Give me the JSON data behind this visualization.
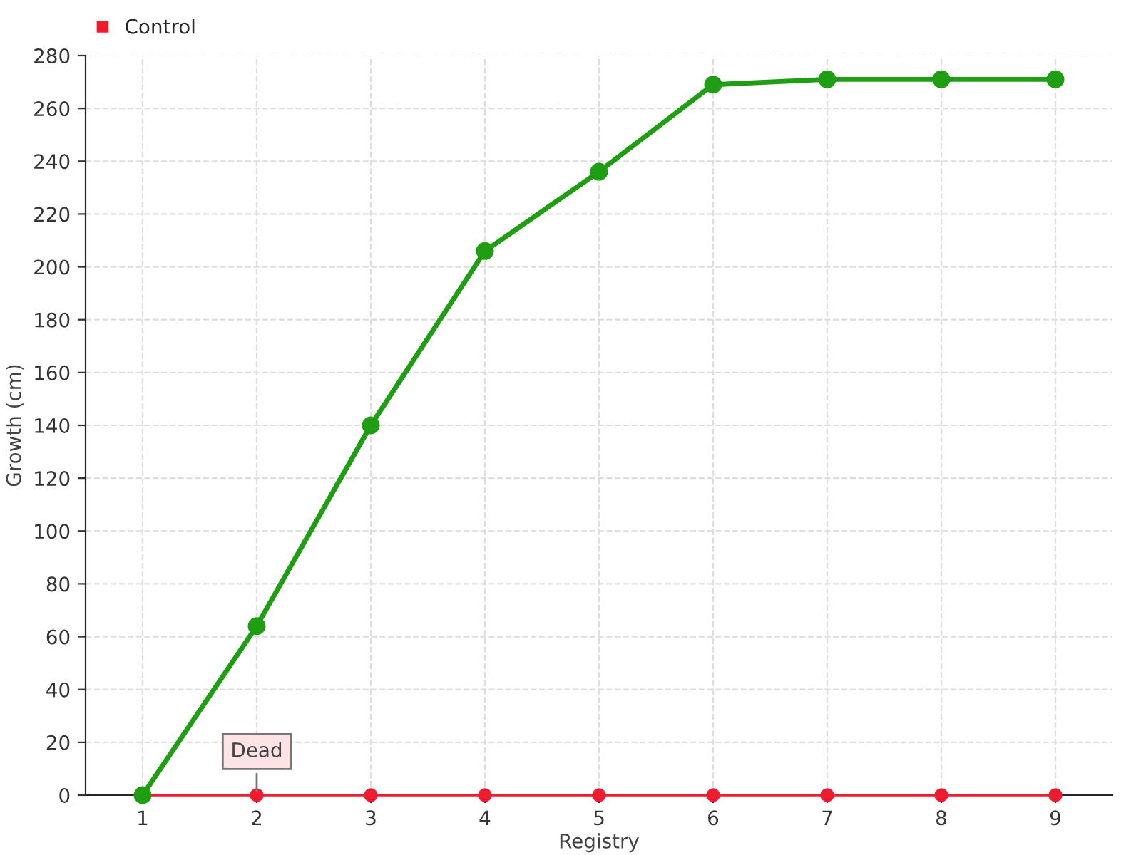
{
  "chart_data": {
    "type": "line",
    "xlabel": "Registry",
    "ylabel": "Growth (cm)",
    "categories": [
      "1",
      "2",
      "3",
      "4",
      "5",
      "6",
      "7",
      "8",
      "9"
    ],
    "series": [
      {
        "color": "#1f9e14",
        "values": [
          0,
          64,
          140,
          206,
          236,
          269,
          271,
          271,
          271
        ]
      },
      {
        "name": "Control",
        "color": "#ee1c2e",
        "values": [
          0,
          0,
          0,
          0,
          0,
          0,
          0,
          0,
          0
        ]
      }
    ],
    "ylim": [
      0,
      280
    ],
    "yticks": [
      0,
      20,
      40,
      60,
      80,
      100,
      120,
      140,
      160,
      180,
      200,
      220,
      240,
      260,
      280
    ],
    "annotations": [
      {
        "text": "Dead",
        "x": "2",
        "y": 0
      }
    ],
    "grid": true,
    "legend": "top left",
    "marker": "circle",
    "line_style": "solid"
  }
}
